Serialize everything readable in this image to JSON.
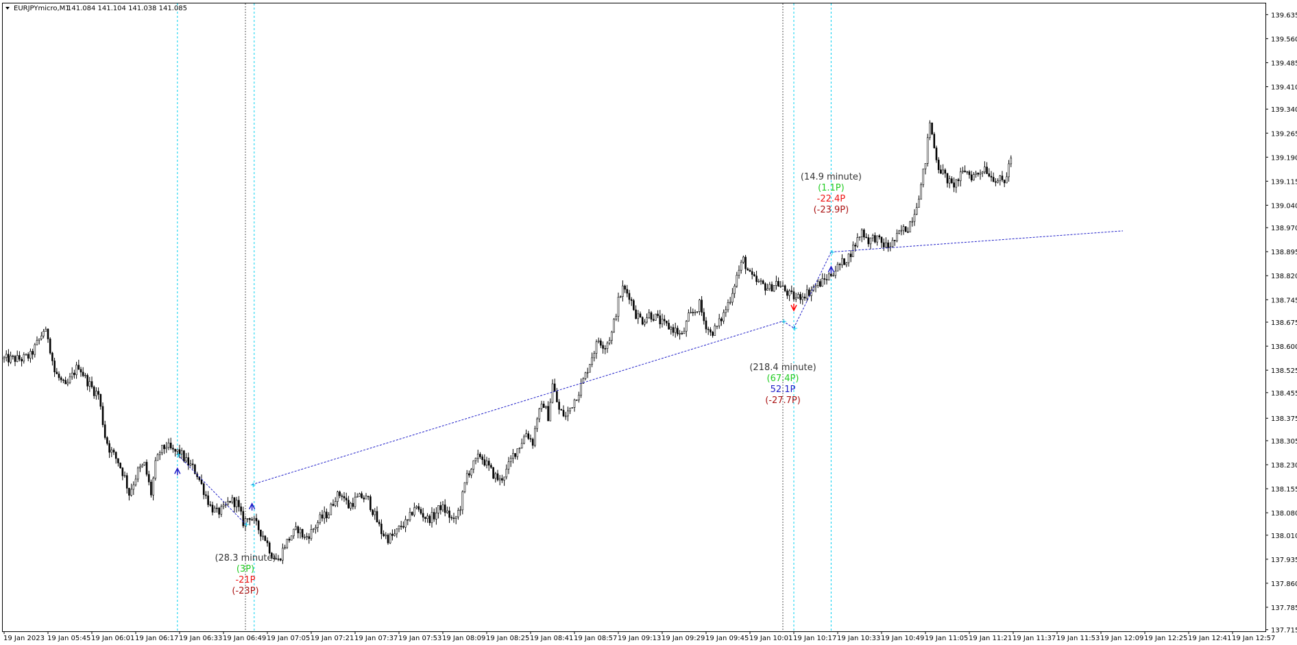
{
  "header": {
    "symbol": "EURJPYmicro,M1",
    "ohlc": "141.084 141.104 141.038 141.085"
  },
  "colors": {
    "candle": "#000000",
    "cyan_line": "#00d0f0",
    "gray_line": "#555555",
    "trade_line": "#1e1ec8",
    "buy_arrow": "#1e1ec8",
    "sell_arrow": "#ff0000",
    "green": "#22cc22",
    "blue": "#1e1ec8",
    "red": "#ee1111",
    "darkred": "#aa1111",
    "grey_text": "#333333"
  },
  "chart_data": {
    "type": "candlestick",
    "ylim": [
      137.71,
      139.67
    ],
    "y_ticks": [
      "139.635",
      "139.560",
      "139.485",
      "139.410",
      "139.340",
      "139.265",
      "139.190",
      "139.115",
      "139.040",
      "138.970",
      "138.895",
      "138.820",
      "138.745",
      "138.675",
      "138.600",
      "138.525",
      "138.455",
      "138.375",
      "138.305",
      "138.230",
      "138.155",
      "138.080",
      "138.010",
      "137.935",
      "137.860",
      "137.785",
      "137.715"
    ],
    "x_ticks": [
      "19 Jan 2023",
      "19 Jan 05:45",
      "19 Jan 06:01",
      "19 Jan 06:17",
      "19 Jan 06:33",
      "19 Jan 06:49",
      "19 Jan 07:05",
      "19 Jan 07:21",
      "19 Jan 07:37",
      "19 Jan 07:53",
      "19 Jan 08:09",
      "19 Jan 08:25",
      "19 Jan 08:41",
      "19 Jan 08:57",
      "19 Jan 09:13",
      "19 Jan 09:29",
      "19 Jan 09:45",
      "19 Jan 10:01",
      "19 Jan 10:17",
      "19 Jan 10:33",
      "19 Jan 10:49",
      "19 Jan 11:05",
      "19 Jan 11:21",
      "19 Jan 11:37",
      "19 Jan 11:53",
      "19 Jan 12:09",
      "19 Jan 12:25",
      "19 Jan 12:41",
      "19 Jan 12:57"
    ],
    "price_path": [
      [
        0,
        138.56
      ],
      [
        8,
        138.56
      ],
      [
        12,
        138.57
      ],
      [
        16,
        138.62
      ],
      [
        18,
        138.65
      ],
      [
        20,
        138.63
      ],
      [
        23,
        138.52
      ],
      [
        26,
        138.49
      ],
      [
        28,
        138.47
      ],
      [
        32,
        138.52
      ],
      [
        34,
        138.54
      ],
      [
        37,
        138.5
      ],
      [
        41,
        138.46
      ],
      [
        43,
        138.45
      ],
      [
        46,
        138.32
      ],
      [
        48,
        138.28
      ],
      [
        52,
        138.24
      ],
      [
        55,
        138.19
      ],
      [
        57,
        138.14
      ],
      [
        61,
        138.21
      ],
      [
        64,
        138.23
      ],
      [
        67,
        138.14
      ],
      [
        69,
        138.23
      ],
      [
        71,
        138.27
      ],
      [
        74,
        138.29
      ],
      [
        77,
        138.27
      ],
      [
        80,
        138.27
      ],
      [
        83,
        138.24
      ],
      [
        86,
        138.22
      ],
      [
        88,
        138.2
      ],
      [
        91,
        138.15
      ],
      [
        94,
        138.1
      ],
      [
        97,
        138.08
      ],
      [
        100,
        138.09
      ],
      [
        103,
        138.12
      ],
      [
        106,
        138.11
      ],
      [
        109,
        138.05
      ],
      [
        112,
        138.07
      ],
      [
        115,
        138.04
      ],
      [
        119,
        138.0
      ],
      [
        122,
        137.95
      ],
      [
        125,
        137.93
      ],
      [
        128,
        137.98
      ],
      [
        131,
        138.01
      ],
      [
        134,
        138.03
      ],
      [
        137,
        138.0
      ],
      [
        140,
        138.02
      ],
      [
        144,
        138.06
      ],
      [
        148,
        138.08
      ],
      [
        151,
        138.13
      ],
      [
        154,
        138.14
      ],
      [
        157,
        138.1
      ],
      [
        160,
        138.12
      ],
      [
        163,
        138.13
      ],
      [
        166,
        138.12
      ],
      [
        169,
        138.07
      ],
      [
        172,
        138.02
      ],
      [
        175,
        138.0
      ],
      [
        178,
        138.01
      ],
      [
        181,
        138.04
      ],
      [
        184,
        138.05
      ],
      [
        187,
        138.1
      ],
      [
        190,
        138.08
      ],
      [
        193,
        138.06
      ],
      [
        196,
        138.07
      ],
      [
        199,
        138.1
      ],
      [
        202,
        138.08
      ],
      [
        205,
        138.05
      ],
      [
        208,
        138.1
      ],
      [
        211,
        138.2
      ],
      [
        214,
        138.23
      ],
      [
        217,
        138.26
      ],
      [
        220,
        138.23
      ],
      [
        223,
        138.2
      ],
      [
        226,
        138.18
      ],
      [
        229,
        138.21
      ],
      [
        232,
        138.26
      ],
      [
        235,
        138.29
      ],
      [
        238,
        138.33
      ],
      [
        241,
        138.3
      ],
      [
        243,
        138.38
      ],
      [
        246,
        138.42
      ],
      [
        248,
        138.38
      ],
      [
        250,
        138.48
      ],
      [
        253,
        138.4
      ],
      [
        256,
        138.38
      ],
      [
        259,
        138.42
      ],
      [
        262,
        138.46
      ],
      [
        265,
        138.51
      ],
      [
        268,
        138.57
      ],
      [
        271,
        138.62
      ],
      [
        274,
        138.6
      ],
      [
        277,
        138.64
      ],
      [
        280,
        138.74
      ],
      [
        282,
        138.78
      ],
      [
        285,
        138.76
      ],
      [
        288,
        138.7
      ],
      [
        291,
        138.68
      ],
      [
        294,
        138.7
      ],
      [
        297,
        138.69
      ],
      [
        300,
        138.67
      ],
      [
        303,
        138.66
      ],
      [
        306,
        138.65
      ],
      [
        309,
        138.63
      ],
      [
        312,
        138.69
      ],
      [
        315,
        138.71
      ],
      [
        317,
        138.73
      ],
      [
        319,
        138.68
      ],
      [
        322,
        138.64
      ],
      [
        325,
        138.66
      ],
      [
        328,
        138.7
      ],
      [
        331,
        138.75
      ],
      [
        334,
        138.82
      ],
      [
        337,
        138.87
      ],
      [
        340,
        138.82
      ],
      [
        343,
        138.8
      ],
      [
        346,
        138.79
      ],
      [
        349,
        138.78
      ],
      [
        352,
        138.8
      ],
      [
        355,
        138.78
      ],
      [
        358,
        138.76
      ],
      [
        361,
        138.75
      ],
      [
        364,
        138.76
      ],
      [
        367,
        138.77
      ],
      [
        370,
        138.79
      ],
      [
        373,
        138.8
      ],
      [
        376,
        138.82
      ],
      [
        379,
        138.84
      ],
      [
        382,
        138.86
      ],
      [
        385,
        138.88
      ],
      [
        388,
        138.92
      ],
      [
        391,
        138.96
      ],
      [
        394,
        138.93
      ],
      [
        397,
        138.94
      ],
      [
        400,
        138.92
      ],
      [
        403,
        138.91
      ],
      [
        406,
        138.93
      ],
      [
        409,
        138.96
      ],
      [
        412,
        138.97
      ],
      [
        415,
        139.02
      ],
      [
        418,
        139.1
      ],
      [
        420,
        139.18
      ],
      [
        422,
        139.3
      ],
      [
        424,
        139.22
      ],
      [
        426,
        139.16
      ],
      [
        429,
        139.13
      ],
      [
        432,
        139.1
      ],
      [
        435,
        139.12
      ],
      [
        438,
        139.15
      ],
      [
        441,
        139.13
      ],
      [
        444,
        139.14
      ],
      [
        447,
        139.16
      ],
      [
        450,
        139.13
      ],
      [
        453,
        139.12
      ],
      [
        456,
        139.11
      ],
      [
        459,
        139.19
      ]
    ],
    "trade_lines": [
      {
        "from": [
          79,
          138.262
        ],
        "to": [
          110,
          138.045
        ]
      },
      {
        "from": [
          113,
          138.168
        ],
        "to": [
          355,
          138.678
        ]
      },
      {
        "from": [
          355,
          138.678
        ],
        "to": [
          360,
          138.657
        ]
      },
      {
        "from": [
          360,
          138.657
        ],
        "to": [
          377,
          138.894
        ]
      },
      {
        "from": [
          377,
          138.894
        ],
        "to": [
          510,
          138.96
        ]
      }
    ],
    "markers": [
      {
        "x": 79,
        "y": 138.262
      },
      {
        "x": 110,
        "y": 138.045
      },
      {
        "x": 113,
        "y": 138.168
      },
      {
        "x": 355,
        "y": 138.678
      },
      {
        "x": 360,
        "y": 138.657
      },
      {
        "x": 377,
        "y": 138.894
      }
    ],
    "arrows": [
      {
        "x": 79,
        "y": 138.21,
        "dir": "up"
      },
      {
        "x": 113,
        "y": 138.1,
        "dir": "up"
      },
      {
        "x": 360,
        "y": 138.72,
        "dir": "down"
      },
      {
        "x": 377,
        "y": 138.84,
        "dir": "up"
      }
    ],
    "vlines_cyan": [
      79,
      114,
      360,
      377
    ],
    "vlines_gray": [
      110,
      355
    ]
  },
  "annotations": [
    {
      "id": "a1",
      "x": 110,
      "y": 137.93,
      "lines": [
        {
          "text": "(28.3 minute)",
          "color": "grey_text"
        },
        {
          "text": "(3P)",
          "color": "green"
        },
        {
          "text": "-21P",
          "color": "red"
        },
        {
          "text": "(-23P)",
          "color": "darkred"
        }
      ]
    },
    {
      "id": "a2",
      "x": 355,
      "y": 138.525,
      "lines": [
        {
          "text": "(218.4 minute)",
          "color": "grey_text"
        },
        {
          "text": "(67.4P)",
          "color": "green"
        },
        {
          "text": "52.1P",
          "color": "blue"
        },
        {
          "text": "(-27.7P)",
          "color": "darkred"
        }
      ]
    },
    {
      "id": "a3",
      "x": 377,
      "y": 139.12,
      "lines": [
        {
          "text": "(14.9 minute)",
          "color": "grey_text"
        },
        {
          "text": "(1.1P)",
          "color": "green"
        },
        {
          "text": "-22.4P",
          "color": "red"
        },
        {
          "text": "(-23.9P)",
          "color": "darkred"
        }
      ]
    }
  ]
}
